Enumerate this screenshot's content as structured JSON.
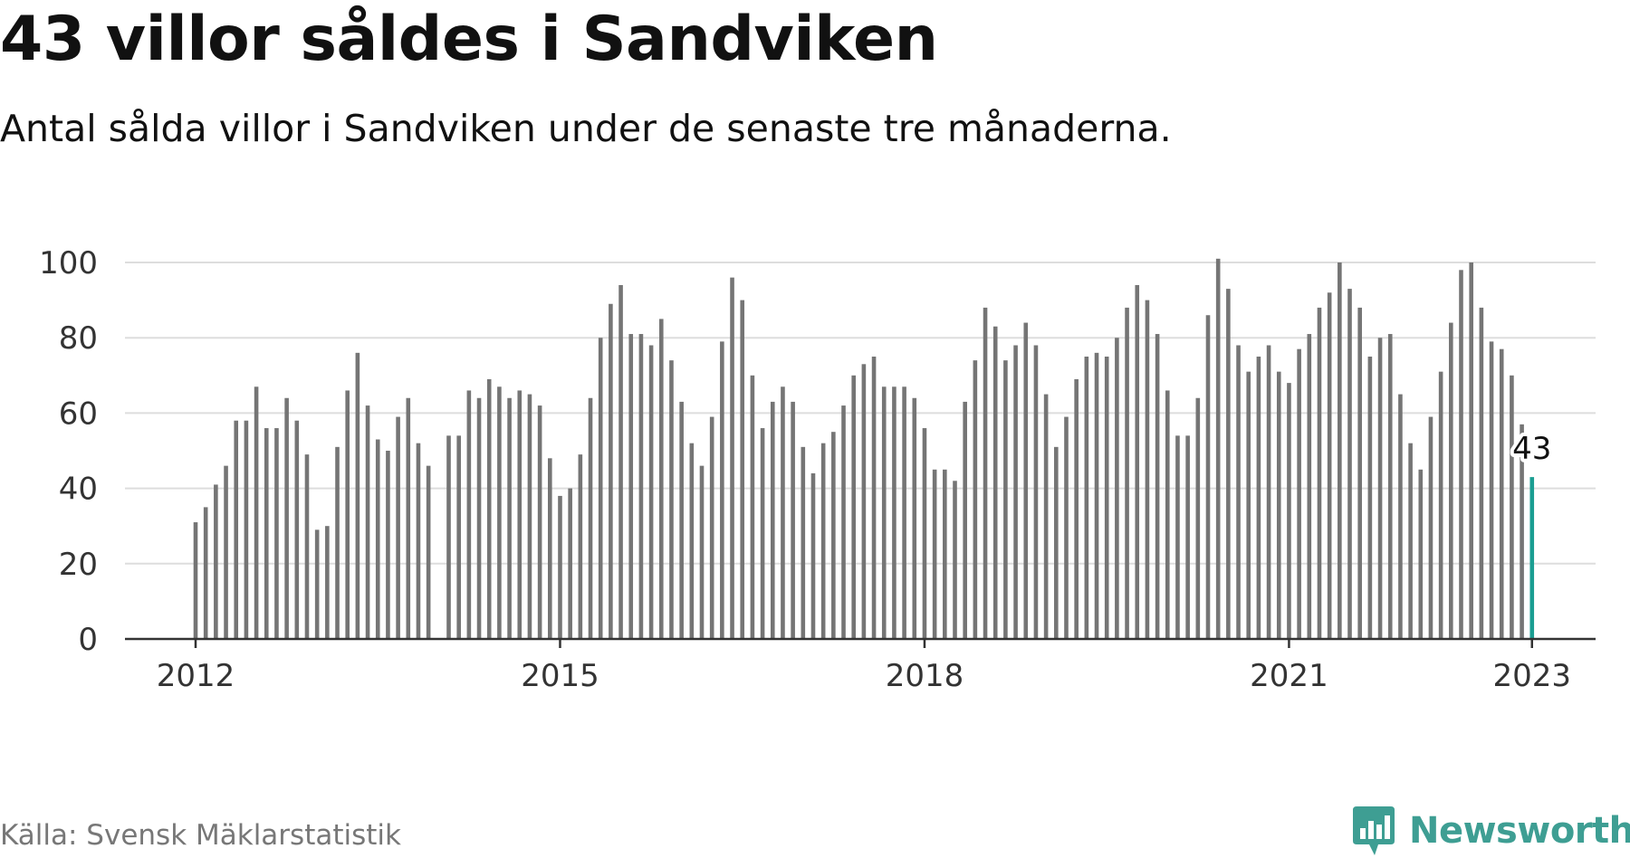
{
  "title": "43 villor såldes i Sandviken",
  "subtitle": "Antal sålda villor i Sandviken under de senaste tre månaderna.",
  "source": "Källa: Svensk Mäklarstatistik",
  "brand": "Newsworthy",
  "colors": {
    "bar": "#757575",
    "highlight": "#1a9e92",
    "grid": "#dddddd",
    "axis": "#333333",
    "brand": "#3e9e93"
  },
  "chart_data": {
    "type": "bar",
    "xlabel": "",
    "ylabel": "",
    "ylim": [
      0,
      100
    ],
    "yticks": [
      0,
      20,
      40,
      60,
      80,
      100
    ],
    "grid": true,
    "start": "2012-01",
    "xticks": [
      {
        "label": "2012",
        "index": 0
      },
      {
        "label": "2015",
        "index": 36
      },
      {
        "label": "2018",
        "index": 72
      },
      {
        "label": "2021",
        "index": 108
      },
      {
        "label": "2023",
        "index": 132
      }
    ],
    "values": [
      31,
      35,
      41,
      46,
      58,
      58,
      67,
      56,
      56,
      64,
      58,
      49,
      29,
      30,
      51,
      66,
      76,
      62,
      53,
      50,
      59,
      64,
      52,
      46,
      null,
      54,
      54,
      66,
      64,
      69,
      67,
      64,
      66,
      65,
      62,
      48,
      38,
      40,
      49,
      64,
      80,
      89,
      94,
      81,
      81,
      78,
      85,
      74,
      63,
      52,
      46,
      59,
      79,
      96,
      90,
      70,
      56,
      63,
      67,
      63,
      51,
      44,
      52,
      55,
      62,
      70,
      73,
      75,
      67,
      67,
      67,
      64,
      56,
      45,
      45,
      42,
      63,
      74,
      88,
      83,
      74,
      78,
      84,
      78,
      65,
      51,
      59,
      69,
      75,
      76,
      75,
      80,
      88,
      94,
      90,
      81,
      66,
      54,
      54,
      64,
      86,
      101,
      93,
      78,
      71,
      75,
      78,
      71,
      68,
      77,
      81,
      88,
      92,
      100,
      93,
      88,
      75,
      80,
      81,
      65,
      52,
      45,
      59,
      71,
      84,
      98,
      100,
      88,
      79,
      77,
      70,
      57,
      43
    ],
    "highlight": {
      "index": 132,
      "label": "43"
    }
  }
}
